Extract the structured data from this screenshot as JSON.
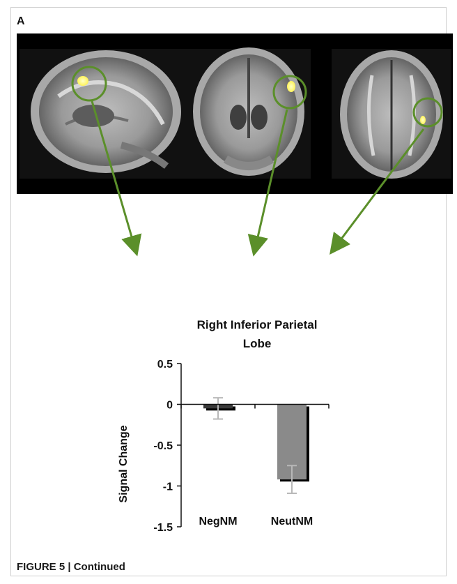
{
  "figure": {
    "panel_label": "A",
    "caption": "FIGURE 5 | Continued",
    "brain_views": [
      {
        "view": "sagittal",
        "has_cluster": true
      },
      {
        "view": "coronal",
        "has_cluster": true
      },
      {
        "view": "axial",
        "has_cluster": true
      }
    ],
    "colors": {
      "highlight": "#5b8f2a",
      "cluster": "#fff35a",
      "bar_negnm": "#3a3a3a",
      "bar_neutnm": "#8a8a8a",
      "error_bar": "#b8b8b8"
    }
  },
  "chart_data": {
    "type": "bar",
    "title_lines": [
      "Right Inferior Parietal",
      "Lobe"
    ],
    "ylabel": "Signal Change",
    "xlabel": "",
    "categories": [
      "NegNM",
      "NeutNM"
    ],
    "values": [
      -0.05,
      -0.92
    ],
    "error": [
      0.13,
      0.17
    ],
    "ylim": [
      -1.5,
      0.5
    ],
    "yticks": [
      0.5,
      0,
      -0.5,
      -1,
      -1.5
    ],
    "ytick_labels": [
      "0.5",
      "0",
      "-0.5",
      "-1",
      "-1.5"
    ],
    "grid": false,
    "legend": "none"
  }
}
